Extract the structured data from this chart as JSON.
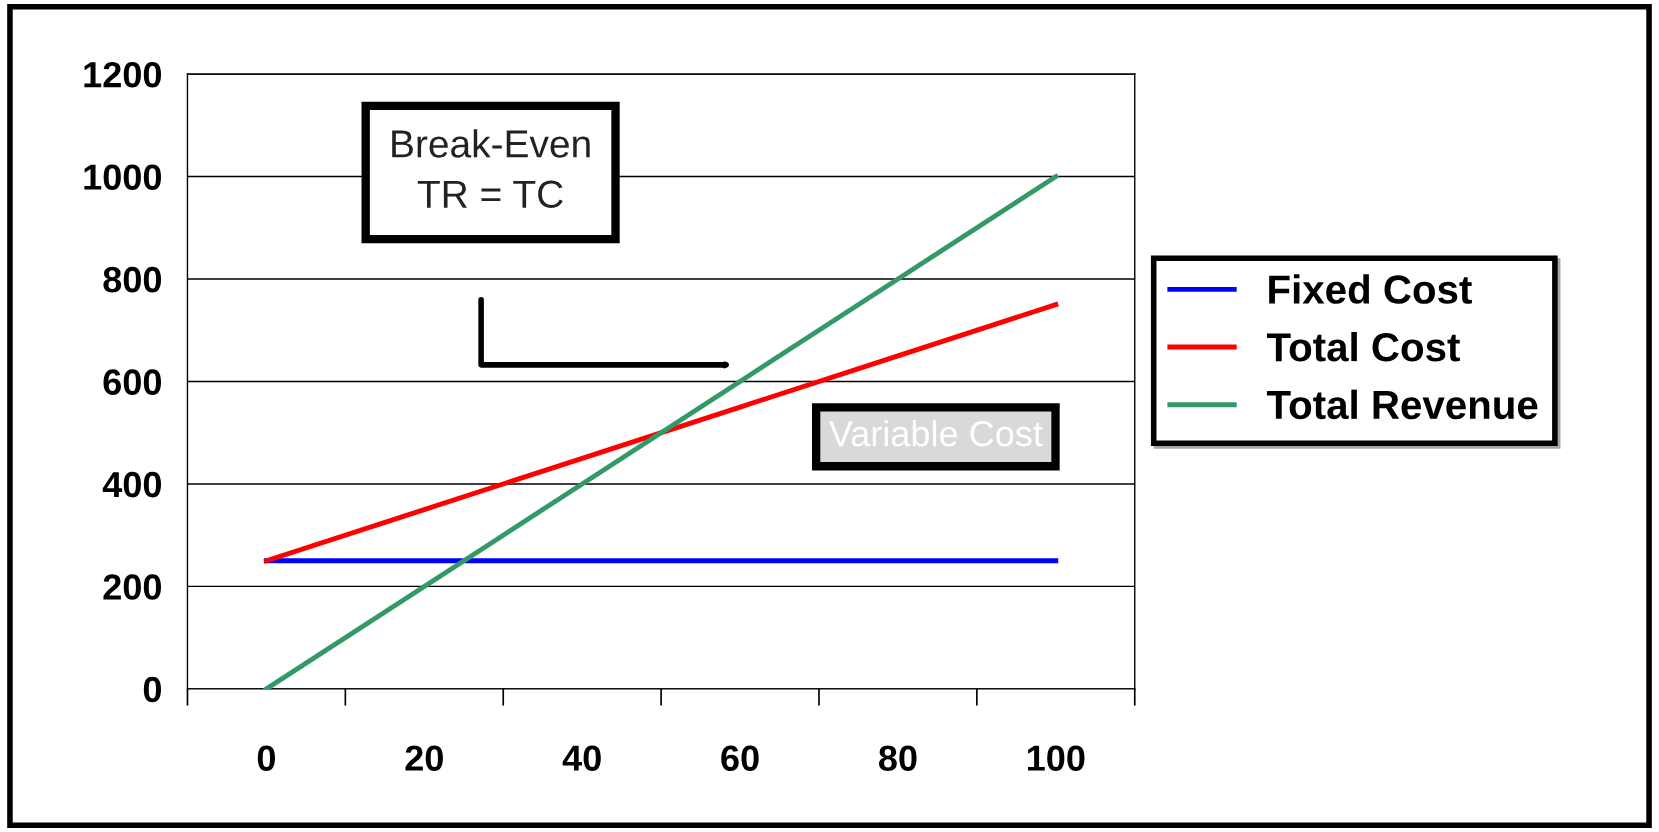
{
  "chart_data": {
    "type": "line",
    "categories": [
      "0",
      "20",
      "40",
      "60",
      "80",
      "100"
    ],
    "series": [
      {
        "name": "Fixed Cost",
        "color": "#0000ff",
        "values": [
          250,
          250,
          250,
          250,
          250,
          250
        ]
      },
      {
        "name": "Total Cost",
        "color": "#ff0000",
        "values": [
          250,
          350,
          450,
          550,
          650,
          750
        ]
      },
      {
        "name": "Total Revenue",
        "color": "#339966",
        "values": [
          0,
          200,
          400,
          600,
          800,
          1000
        ]
      }
    ],
    "ylim": [
      0,
      1200
    ],
    "yticks": [
      0,
      200,
      400,
      600,
      800,
      1000,
      1200
    ],
    "grid": "y",
    "legend": "right",
    "marker": "none",
    "line_style": "solid",
    "annotations": [
      "Break-Even\nTR = TC",
      "Variable Cost"
    ]
  }
}
